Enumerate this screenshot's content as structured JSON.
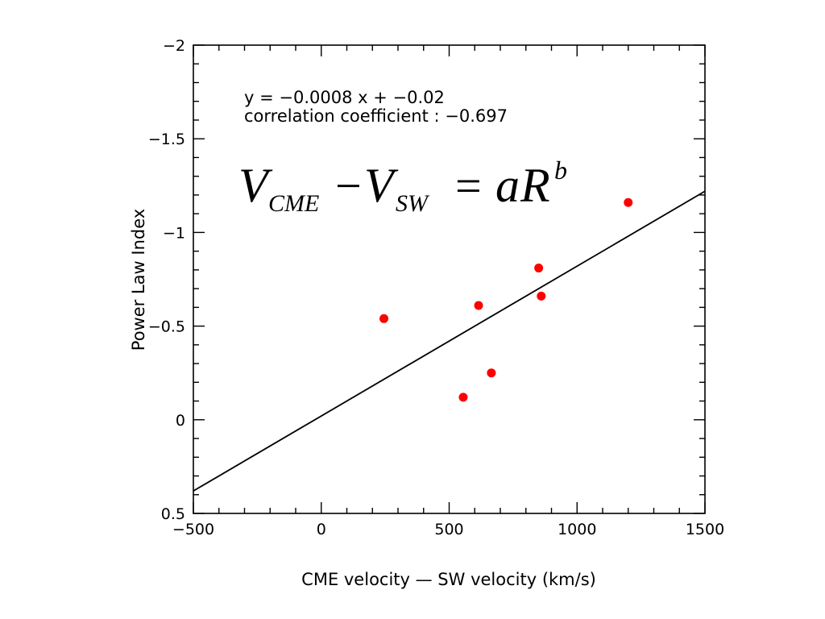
{
  "chart_data": {
    "type": "scatter",
    "xlabel": "CME velocity — SW velocity (km/s)",
    "ylabel": "Power Law Index",
    "xlim": [
      -500,
      1500
    ],
    "ylim": [
      0.5,
      -2
    ],
    "y_inverted": true,
    "x_ticks": [
      -500,
      0,
      500,
      1000,
      1500
    ],
    "x_tick_labels": [
      "−500",
      "0",
      "500",
      "1000",
      "1500"
    ],
    "y_ticks": [
      -2,
      -1.5,
      -1,
      -0.5,
      0,
      0.5
    ],
    "y_tick_labels": [
      "−2",
      "−1.5",
      "−1",
      "−0.5",
      "0",
      "0.5"
    ],
    "series": [
      {
        "points": [
          {
            "x": 245,
            "y": -0.54
          },
          {
            "x": 555,
            "y": -0.12
          },
          {
            "x": 615,
            "y": -0.61
          },
          {
            "x": 665,
            "y": -0.25
          },
          {
            "x": 850,
            "y": -0.81
          },
          {
            "x": 860,
            "y": -0.66
          },
          {
            "x": 1200,
            "y": -1.16
          }
        ],
        "color": "#ff0000"
      }
    ],
    "fit_line": {
      "slope": -0.0008,
      "intercept": -0.02,
      "color": "#000000"
    },
    "annotations": {
      "equation": "y = −0.0008 x +  −0.02",
      "correlation": "correlation coefficient : −0.697"
    },
    "formula": {
      "v1": "V",
      "sub1": "CME",
      "minus": "−",
      "v2": "V",
      "sub2": "SW",
      "equals": "=",
      "a": "a",
      "r": "R",
      "exp": "b"
    },
    "grid": false
  }
}
